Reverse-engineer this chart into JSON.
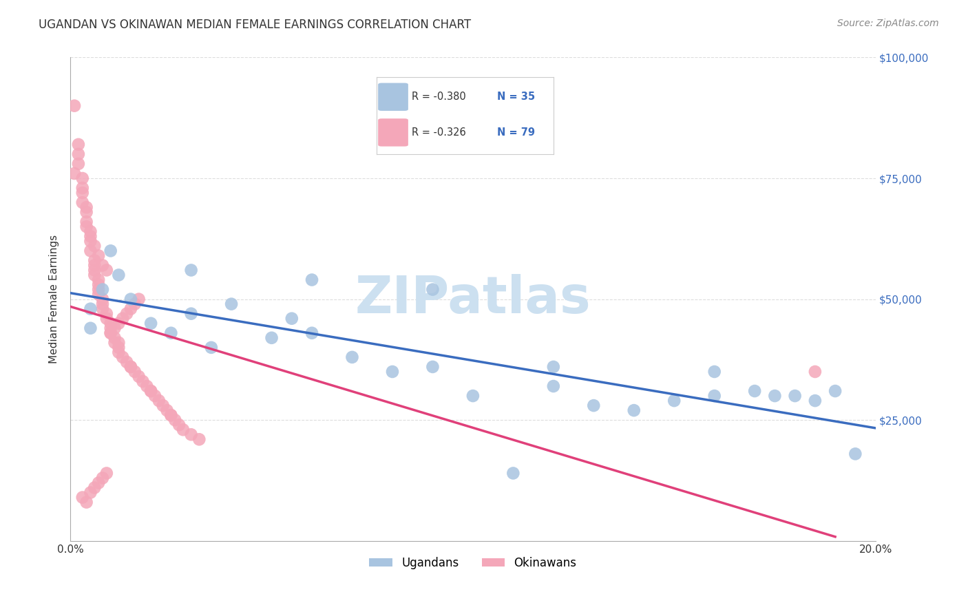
{
  "title": "UGANDAN VS OKINAWAN MEDIAN FEMALE EARNINGS CORRELATION CHART",
  "source": "Source: ZipAtlas.com",
  "ylabel": "Median Female Earnings",
  "xlim": [
    0.0,
    0.2
  ],
  "ylim": [
    0,
    100000
  ],
  "yticks": [
    0,
    25000,
    50000,
    75000,
    100000
  ],
  "ytick_labels": [
    "",
    "$25,000",
    "$50,000",
    "$75,000",
    "$100,000"
  ],
  "ugandan_color": "#a8c4e0",
  "okinawan_color": "#f4a7b9",
  "ugandan_line_color": "#3a6cbf",
  "okinawan_line_color": "#e0407a",
  "ugandan_R": -0.38,
  "ugandan_N": 35,
  "okinawan_R": -0.326,
  "okinawan_N": 79,
  "background_color": "#ffffff",
  "grid_color": "#dddddd",
  "title_color": "#333333",
  "source_color": "#888888",
  "ylabel_color": "#333333",
  "watermark_color": "#cce0f0",
  "ugandan_x": [
    0.005,
    0.005,
    0.008,
    0.01,
    0.012,
    0.015,
    0.02,
    0.025,
    0.03,
    0.035,
    0.04,
    0.05,
    0.055,
    0.06,
    0.07,
    0.08,
    0.09,
    0.1,
    0.11,
    0.12,
    0.13,
    0.14,
    0.15,
    0.16,
    0.17,
    0.175,
    0.18,
    0.185,
    0.19,
    0.195,
    0.03,
    0.06,
    0.09,
    0.12,
    0.16
  ],
  "ugandan_y": [
    44000,
    48000,
    52000,
    60000,
    55000,
    50000,
    45000,
    43000,
    47000,
    40000,
    49000,
    42000,
    46000,
    43000,
    38000,
    35000,
    36000,
    30000,
    14000,
    32000,
    28000,
    27000,
    29000,
    30000,
    31000,
    30000,
    30000,
    29000,
    31000,
    18000,
    56000,
    54000,
    52000,
    36000,
    35000
  ],
  "okinawan_x": [
    0.001,
    0.002,
    0.002,
    0.003,
    0.003,
    0.003,
    0.004,
    0.004,
    0.004,
    0.005,
    0.005,
    0.005,
    0.006,
    0.006,
    0.006,
    0.006,
    0.007,
    0.007,
    0.007,
    0.007,
    0.008,
    0.008,
    0.008,
    0.009,
    0.009,
    0.01,
    0.01,
    0.01,
    0.011,
    0.011,
    0.012,
    0.012,
    0.013,
    0.014,
    0.015,
    0.016,
    0.017,
    0.018,
    0.019,
    0.02,
    0.021,
    0.022,
    0.023,
    0.024,
    0.025,
    0.026,
    0.027,
    0.028,
    0.03,
    0.032,
    0.001,
    0.002,
    0.003,
    0.004,
    0.005,
    0.006,
    0.007,
    0.008,
    0.009,
    0.012,
    0.015,
    0.02,
    0.025,
    0.003,
    0.004,
    0.005,
    0.006,
    0.007,
    0.008,
    0.009,
    0.01,
    0.011,
    0.012,
    0.013,
    0.014,
    0.015,
    0.016,
    0.017,
    0.185
  ],
  "okinawan_y": [
    90000,
    82000,
    78000,
    75000,
    72000,
    70000,
    68000,
    66000,
    65000,
    63000,
    62000,
    60000,
    58000,
    57000,
    56000,
    55000,
    54000,
    53000,
    52000,
    51000,
    50000,
    49000,
    48000,
    47000,
    46000,
    45000,
    44000,
    43000,
    42000,
    41000,
    40000,
    39000,
    38000,
    37000,
    36000,
    35000,
    34000,
    33000,
    32000,
    31000,
    30000,
    29000,
    28000,
    27000,
    26000,
    25000,
    24000,
    23000,
    22000,
    21000,
    76000,
    80000,
    73000,
    69000,
    64000,
    61000,
    59000,
    57000,
    56000,
    41000,
    36000,
    31000,
    26000,
    9000,
    8000,
    10000,
    11000,
    12000,
    13000,
    14000,
    43000,
    44000,
    45000,
    46000,
    47000,
    48000,
    49000,
    50000,
    35000
  ]
}
